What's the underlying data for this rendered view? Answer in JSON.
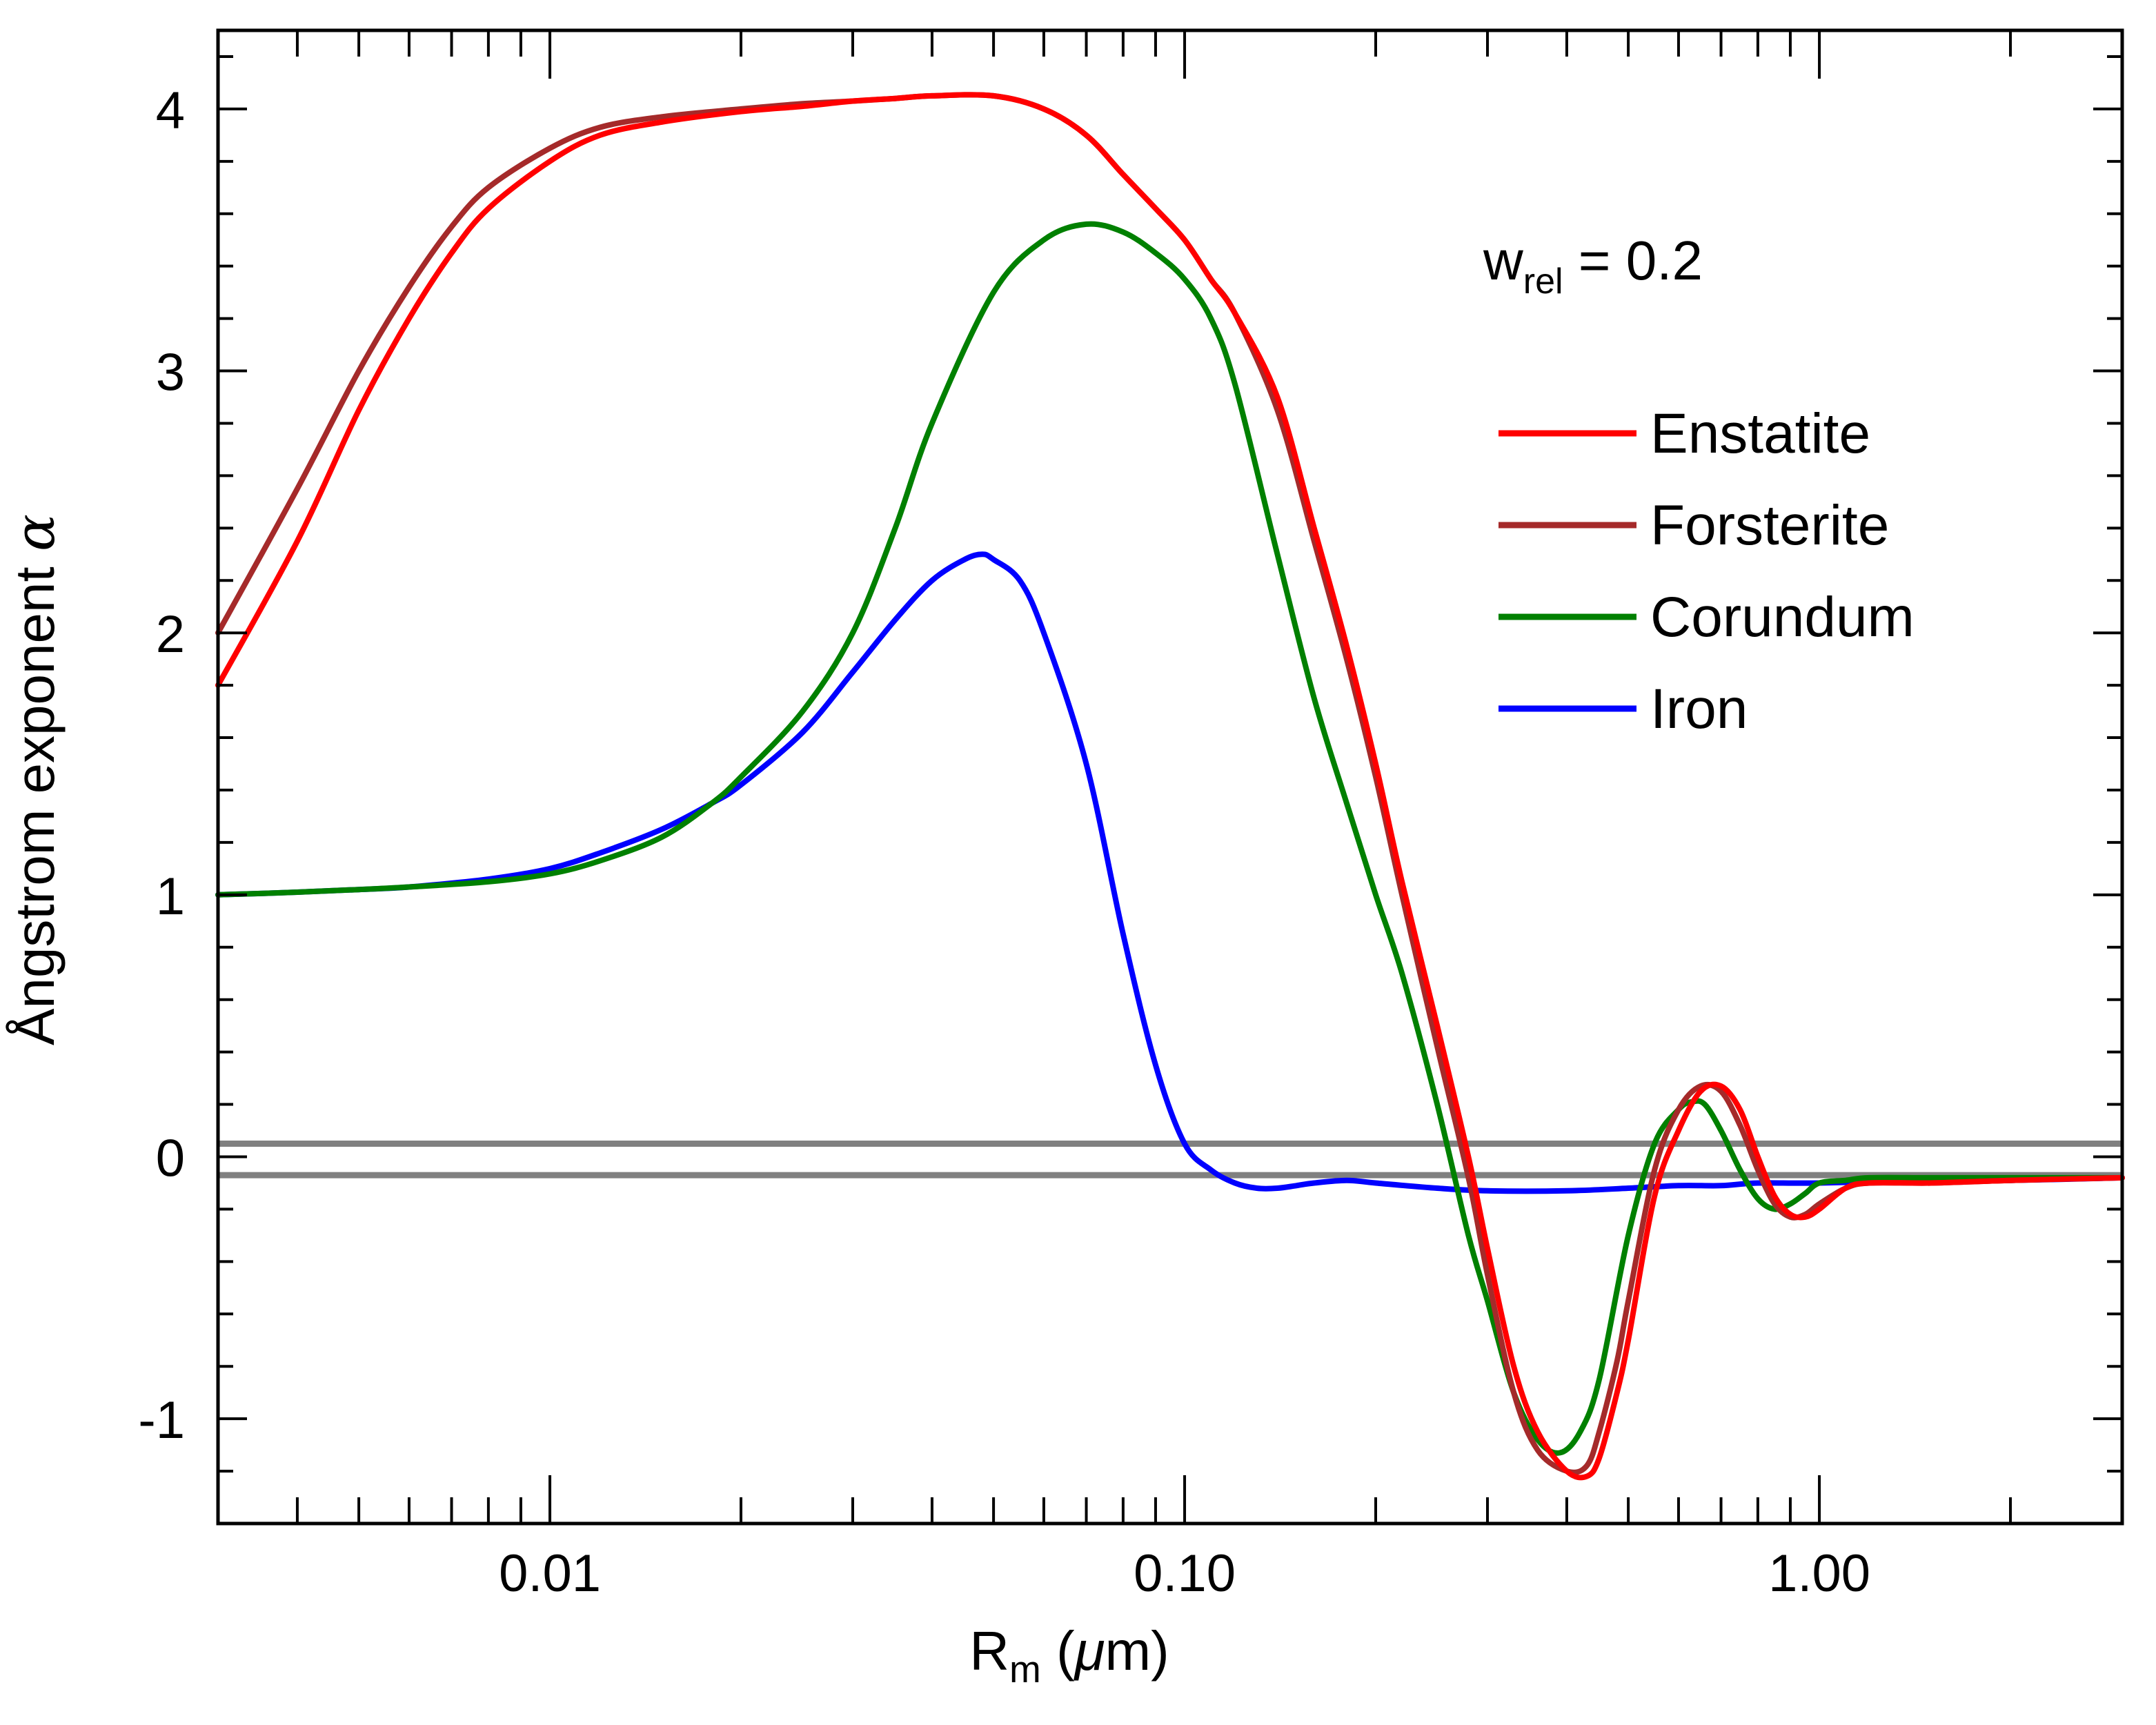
{
  "chart_data": {
    "type": "line",
    "title": "",
    "xlabel": "R",
    "xlabel_sub": "m",
    "xlabel_unit_open": " (",
    "xlabel_unit_mu": "μ",
    "xlabel_unit_rest": "m)",
    "ylabel": "Ångstrom exponent ",
    "ylabel_symbol": "α",
    "xscale": "log",
    "xlim": [
      0.003,
      3.0
    ],
    "ylim": [
      -1.4,
      4.3
    ],
    "xticks": [
      0.01,
      0.1,
      1.0
    ],
    "xtick_labels": [
      "0.01",
      "0.10",
      "1.00"
    ],
    "yticks": [
      -1,
      0,
      1,
      2,
      3,
      4
    ],
    "ytick_labels": [
      "-1",
      "0",
      "1",
      "2",
      "3",
      "4"
    ],
    "annotation": {
      "base": "w",
      "sub": "rel",
      "rest": " = 0.2"
    },
    "legend_position": "top-right",
    "reference_lines": [
      {
        "y": 0.05,
        "color": "#808080"
      },
      {
        "y": -0.07,
        "color": "#808080"
      }
    ],
    "series": [
      {
        "name": "Enstatite",
        "color": "#ff0000",
        "x": [
          0.003,
          0.004,
          0.005,
          0.006,
          0.007,
          0.008,
          0.01,
          0.012,
          0.015,
          0.02,
          0.025,
          0.03,
          0.035,
          0.04,
          0.05,
          0.06,
          0.07,
          0.08,
          0.09,
          0.1,
          0.11,
          0.12,
          0.14,
          0.16,
          0.18,
          0.2,
          0.22,
          0.25,
          0.28,
          0.3,
          0.33,
          0.36,
          0.4,
          0.43,
          0.45,
          0.48,
          0.5,
          0.55,
          0.6,
          0.65,
          0.7,
          0.75,
          0.8,
          0.85,
          0.9,
          0.95,
          1.0,
          1.1,
          1.2,
          1.5,
          2.0,
          3.0
        ],
        "y": [
          1.8,
          2.35,
          2.85,
          3.2,
          3.45,
          3.62,
          3.8,
          3.9,
          3.95,
          3.99,
          4.01,
          4.03,
          4.04,
          4.05,
          4.05,
          4.0,
          3.9,
          3.75,
          3.62,
          3.5,
          3.35,
          3.22,
          2.9,
          2.4,
          1.95,
          1.5,
          1.05,
          0.5,
          0.0,
          -0.35,
          -0.8,
          -1.05,
          -1.2,
          -1.22,
          -1.15,
          -0.9,
          -0.7,
          -0.15,
          0.1,
          0.25,
          0.27,
          0.18,
          0.0,
          -0.15,
          -0.22,
          -0.23,
          -0.2,
          -0.12,
          -0.1,
          -0.1,
          -0.09,
          -0.08
        ]
      },
      {
        "name": "Forsterite",
        "color": "#a52a2a",
        "x": [
          0.003,
          0.004,
          0.005,
          0.006,
          0.007,
          0.008,
          0.01,
          0.012,
          0.015,
          0.02,
          0.025,
          0.03,
          0.035,
          0.04,
          0.05,
          0.06,
          0.07,
          0.08,
          0.09,
          0.1,
          0.11,
          0.12,
          0.14,
          0.16,
          0.18,
          0.2,
          0.22,
          0.25,
          0.28,
          0.3,
          0.33,
          0.36,
          0.4,
          0.43,
          0.45,
          0.48,
          0.5,
          0.55,
          0.6,
          0.65,
          0.7,
          0.75,
          0.8,
          0.85,
          0.9,
          0.95,
          1.0,
          1.1,
          1.2,
          1.5,
          2.0,
          3.0
        ],
        "y": [
          2.0,
          2.55,
          3.0,
          3.32,
          3.55,
          3.7,
          3.85,
          3.93,
          3.97,
          4.0,
          4.02,
          4.03,
          4.04,
          4.05,
          4.05,
          4.0,
          3.9,
          3.75,
          3.62,
          3.5,
          3.35,
          3.22,
          2.85,
          2.35,
          1.9,
          1.45,
          1.0,
          0.42,
          -0.08,
          -0.45,
          -0.9,
          -1.12,
          -1.2,
          -1.18,
          -1.05,
          -0.78,
          -0.55,
          -0.05,
          0.18,
          0.27,
          0.25,
          0.12,
          -0.05,
          -0.18,
          -0.23,
          -0.22,
          -0.18,
          -0.12,
          -0.1,
          -0.1,
          -0.09,
          -0.08
        ]
      },
      {
        "name": "Corundum",
        "color": "#008000",
        "x": [
          0.003,
          0.004,
          0.005,
          0.006,
          0.008,
          0.01,
          0.012,
          0.015,
          0.018,
          0.02,
          0.025,
          0.03,
          0.035,
          0.04,
          0.05,
          0.06,
          0.07,
          0.08,
          0.09,
          0.1,
          0.11,
          0.12,
          0.14,
          0.16,
          0.18,
          0.2,
          0.22,
          0.25,
          0.28,
          0.3,
          0.33,
          0.36,
          0.39,
          0.42,
          0.45,
          0.5,
          0.55,
          0.6,
          0.63,
          0.66,
          0.7,
          0.75,
          0.8,
          0.85,
          0.9,
          0.95,
          1.0,
          1.1,
          1.2,
          1.5,
          2.0,
          3.0
        ],
        "y": [
          1.0,
          1.01,
          1.02,
          1.03,
          1.05,
          1.08,
          1.13,
          1.22,
          1.35,
          1.45,
          1.7,
          2.0,
          2.4,
          2.8,
          3.3,
          3.5,
          3.56,
          3.53,
          3.45,
          3.35,
          3.2,
          2.95,
          2.3,
          1.75,
          1.35,
          1.0,
          0.7,
          0.2,
          -0.3,
          -0.55,
          -0.9,
          -1.08,
          -1.13,
          -1.05,
          -0.85,
          -0.3,
          0.05,
          0.18,
          0.21,
          0.2,
          0.1,
          -0.05,
          -0.16,
          -0.2,
          -0.18,
          -0.14,
          -0.1,
          -0.09,
          -0.08,
          -0.08,
          -0.08,
          -0.08
        ]
      },
      {
        "name": "Iron",
        "color": "#0000ff",
        "x": [
          0.003,
          0.004,
          0.005,
          0.006,
          0.008,
          0.01,
          0.012,
          0.015,
          0.018,
          0.02,
          0.025,
          0.03,
          0.035,
          0.04,
          0.045,
          0.048,
          0.05,
          0.055,
          0.06,
          0.07,
          0.08,
          0.09,
          0.1,
          0.11,
          0.12,
          0.13,
          0.14,
          0.15,
          0.16,
          0.18,
          0.2,
          0.25,
          0.3,
          0.4,
          0.5,
          0.6,
          0.7,
          0.8,
          1.0,
          1.5,
          2.0,
          3.0
        ],
        "y": [
          1.0,
          1.01,
          1.02,
          1.03,
          1.06,
          1.1,
          1.16,
          1.25,
          1.35,
          1.42,
          1.62,
          1.85,
          2.05,
          2.2,
          2.28,
          2.3,
          2.28,
          2.2,
          2.0,
          1.5,
          0.85,
          0.35,
          0.05,
          -0.05,
          -0.1,
          -0.12,
          -0.12,
          -0.11,
          -0.1,
          -0.09,
          -0.1,
          -0.12,
          -0.13,
          -0.13,
          -0.12,
          -0.11,
          -0.11,
          -0.1,
          -0.1,
          -0.09,
          -0.09,
          -0.08
        ]
      }
    ]
  }
}
